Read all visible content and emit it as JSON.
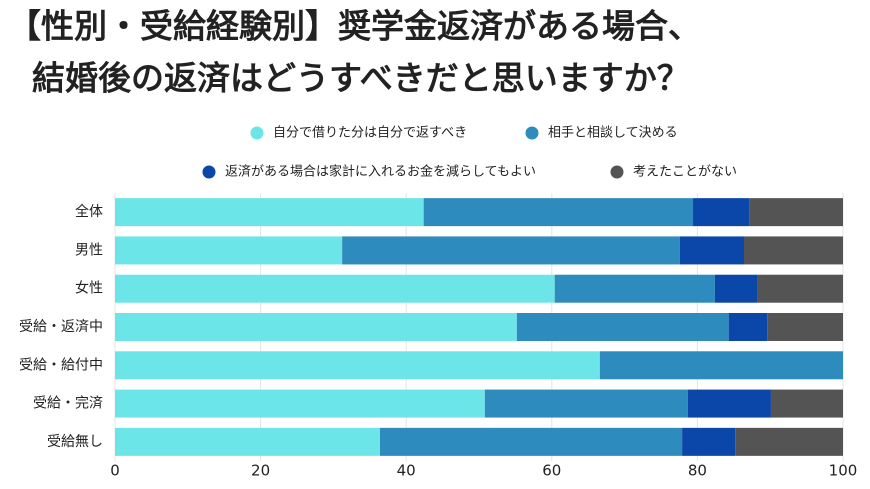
{
  "chart_data": {
    "type": "stacked-bar-horizontal",
    "title": [
      "【性別・受給経験別】奨学金返済がある場合、",
      "結婚後の返済はどうすべきだと思いますか？"
    ],
    "categories": [
      "全体",
      "男性",
      "女性",
      "受給・返済中",
      "受給・給付中",
      "受給・完済",
      "受給無し"
    ],
    "series": [
      {
        "name": "自分で借りた分は自分で返すべき",
        "color": "#6ce5e8",
        "values": [
          42.4,
          31.2,
          60.4,
          55.2,
          66.6,
          50.8,
          36.4
        ]
      },
      {
        "name": "相手と相談して決める",
        "color": "#2e8bbd",
        "values": [
          37.0,
          46.4,
          22.0,
          29.1,
          33.4,
          27.9,
          41.5
        ]
      },
      {
        "name": "返済がある場合は家計に入れるお金を減らしてもよい",
        "color": "#0a47a9",
        "values": [
          7.7,
          8.8,
          5.9,
          5.3,
          0,
          11.4,
          7.3
        ]
      },
      {
        "name": "考えたことがない",
        "color": "#545454",
        "values": [
          12.9,
          13.6,
          11.7,
          10.4,
          0,
          9.9,
          14.8
        ]
      }
    ],
    "xlim": [
      0,
      100
    ],
    "xticks": [
      0,
      20,
      40,
      60,
      80,
      100
    ],
    "grid": true
  }
}
